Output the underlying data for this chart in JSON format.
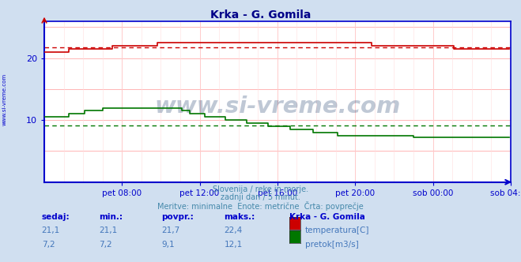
{
  "title": "Krka - G. Gomila",
  "bg_color": "#d0dff0",
  "plot_bg_color": "#ffffff",
  "grid_color": "#ffaaaa",
  "grid_color_minor": "#ffe0e0",
  "tick_label_color": "#0000cc",
  "ylabel_values": [
    10,
    20
  ],
  "ylim": [
    0,
    26
  ],
  "xlim": [
    0,
    288
  ],
  "tick_labels": [
    "pet 08:00",
    "pet 12:00",
    "pet 16:00",
    "pet 20:00",
    "sob 00:00",
    "sob 04:00"
  ],
  "tick_positions": [
    48,
    96,
    144,
    192,
    240,
    288
  ],
  "temp_avg": 21.7,
  "temp_min": 21.1,
  "temp_max": 22.4,
  "flow_avg": 9.1,
  "flow_min": 7.2,
  "flow_max": 12.1,
  "temp_color": "#cc0000",
  "flow_color": "#007700",
  "axis_color": "#0000cc",
  "watermark_color": "#1a3a6a",
  "footer_color": "#4488aa",
  "table_header_color": "#0000cc",
  "table_val_color": "#4477bb",
  "footer_line1": "Slovenija / reke in morje.",
  "footer_line2": "zadnji dan / 5 minut.",
  "footer_line3": "Meritve: minimalne  Enote: metrične  Črta: povprečje",
  "table_header": [
    "sedaj:",
    "min.:",
    "povpr.:",
    "maks.:",
    "Krka - G. Gomila"
  ],
  "table_row1": [
    "21,1",
    "21,1",
    "21,7",
    "22,4",
    "temperatura[C]"
  ],
  "table_row2": [
    "7,2",
    "7,2",
    "9,1",
    "12,1",
    "pretok[m3/s]"
  ]
}
